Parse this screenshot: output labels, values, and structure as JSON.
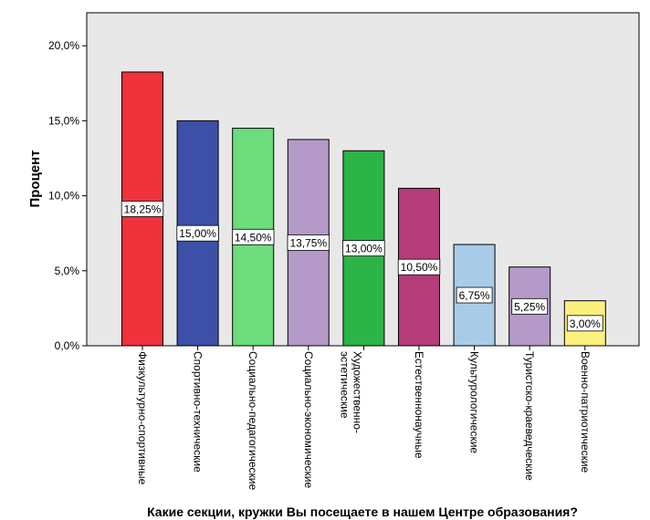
{
  "chart_data": {
    "type": "bar",
    "title": "",
    "xlabel": "Какие секции, кружки Вы посещаете в нашем Центре образования?",
    "ylabel": "Процент",
    "ylim": [
      0,
      22.2
    ],
    "yticks": [
      0,
      5,
      10,
      15,
      20
    ],
    "ytick_labels": [
      "0,0%",
      "5,0%",
      "10,0%",
      "15,0%",
      "20,0%"
    ],
    "grid": false,
    "legend": "none",
    "plot_background": "#e8e8e8",
    "categories": [
      "Физкультурно-спортивные",
      "Спортивно-технические",
      "Социально-педагогические",
      "Социально-экономические",
      "Художественно-эстетические",
      "Естественнонаучные",
      "Культурологические",
      "Туристско-краеведческие",
      "Военно-патриотические"
    ],
    "category_lines": [
      [
        "Физкультурно-спортивные"
      ],
      [
        "Спортивно-технические"
      ],
      [
        "Социально-педагогические"
      ],
      [
        "Социально-экономические"
      ],
      [
        "Художественно-",
        "эстетические"
      ],
      [
        "Естественнонаучные"
      ],
      [
        "Культурологические"
      ],
      [
        "Туристско-краеведческие"
      ],
      [
        "Военно-патриотические"
      ]
    ],
    "values": [
      18.25,
      15.0,
      14.5,
      13.75,
      13.0,
      10.5,
      6.75,
      5.25,
      3.0
    ],
    "data_labels": [
      "18,25%",
      "15,00%",
      "14,50%",
      "13,75%",
      "13,00%",
      "10,50%",
      "6,75%",
      "5,25%",
      "3,00%"
    ],
    "colors": [
      "#f0323c",
      "#3c50a8",
      "#6cdc7c",
      "#b49ac8",
      "#2cb446",
      "#b43c78",
      "#a8cce8",
      "#b49ac8",
      "#faf07c"
    ]
  }
}
